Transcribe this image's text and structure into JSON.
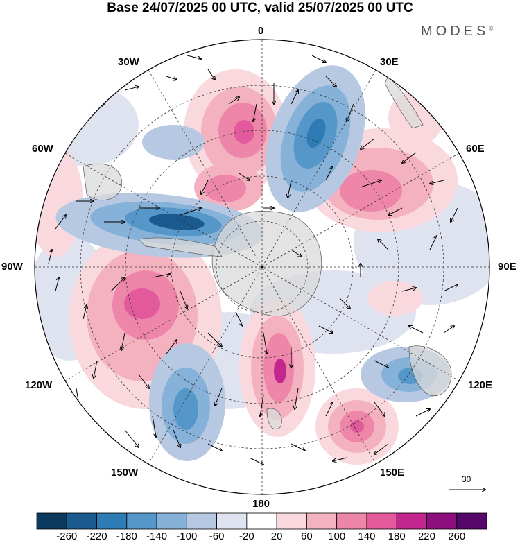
{
  "title": "Base 24/07/2025 00 UTC, valid 25/07/2025 00 UTC",
  "brand": "MODES",
  "brand_mark": "©",
  "longitude_labels": {
    "0": "0",
    "30E": "30E",
    "60E": "60E",
    "90E": "90E",
    "120E": "120E",
    "150E": "150E",
    "180": "180",
    "150W": "150W",
    "120W": "120W",
    "90W": "90W",
    "60W": "60W",
    "30W": "30W"
  },
  "reference_vector": {
    "label": "30"
  },
  "colorbar": {
    "labels": [
      "-260",
      "-220",
      "-180",
      "-140",
      "-100",
      "-60",
      "-20",
      "20",
      "60",
      "100",
      "140",
      "180",
      "220",
      "260"
    ],
    "colors": [
      "#0b3a5e",
      "#1a5a8e",
      "#2f7bb6",
      "#5497c8",
      "#86b1d8",
      "#b6c8e2",
      "#dfe2ef",
      "#ffffff",
      "#f9d9dd",
      "#f4b2c0",
      "#ee86a9",
      "#e25a9b",
      "#c4268f",
      "#8f0e7e",
      "#55086a"
    ]
  },
  "colors": {
    "negative_strong": "#2f7bb6",
    "negative_light": "#b6c8e2",
    "positive_light": "#f4b2c0",
    "positive_strong": "#e25a9b",
    "land": "#d9d9d9"
  }
}
